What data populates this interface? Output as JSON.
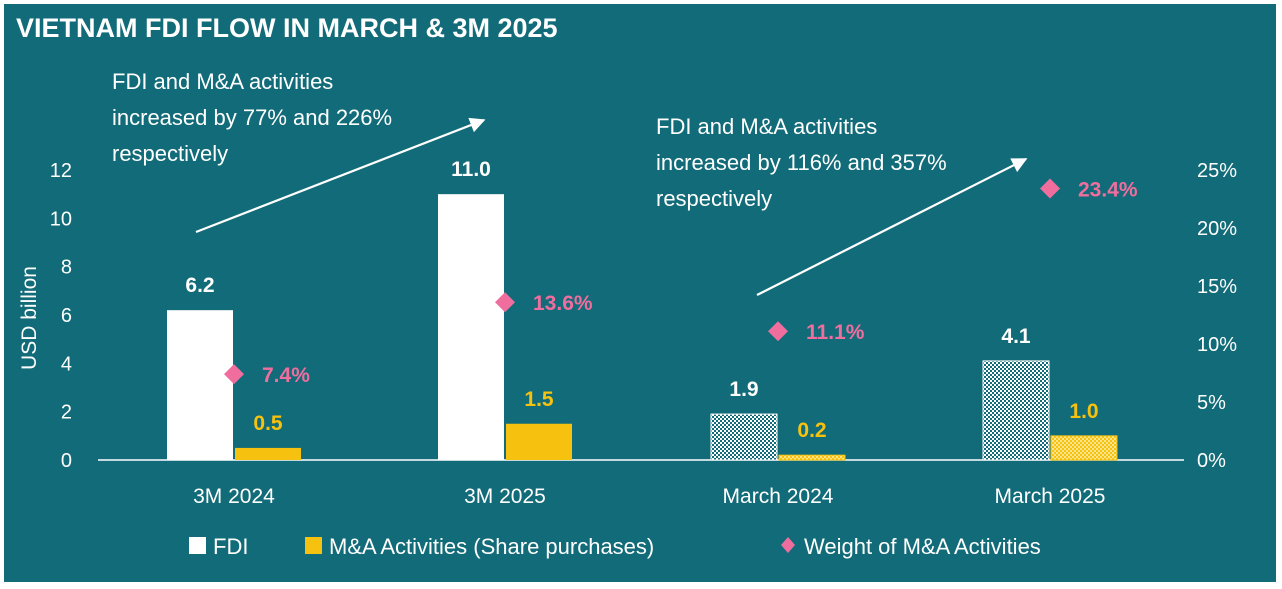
{
  "chart_data": {
    "type": "bar",
    "title": "VIETNAM FDI FLOW IN MARCH & 3M 2025",
    "categories": [
      "3M 2024",
      "3M 2025",
      "March 2024",
      "March 2025"
    ],
    "ylabel": "USD billion",
    "ylim": [
      0,
      12
    ],
    "y_ticks": [
      "0",
      "2",
      "4",
      "6",
      "8",
      "10",
      "12"
    ],
    "y2lim": [
      0,
      25
    ],
    "y2_ticks": [
      "0%",
      "5%",
      "10%",
      "15%",
      "20%",
      "25%"
    ],
    "series": [
      {
        "name": "FDI",
        "type": "bar",
        "color": "#ffffff",
        "values": [
          6.2,
          11.0,
          1.9,
          4.1
        ],
        "labels": [
          "6.2",
          "11.0",
          "1.9",
          "4.1"
        ]
      },
      {
        "name": "M&A Activities (Share purchases)",
        "type": "bar",
        "color": "#f6c20f",
        "values": [
          0.5,
          1.5,
          0.2,
          1.0
        ],
        "labels": [
          "0.5",
          "1.5",
          "0.2",
          "1.0"
        ]
      },
      {
        "name": "Weight of M&A Activities",
        "type": "scatter",
        "marker": "diamond",
        "color": "#ef6e9e",
        "axis": "secondary",
        "values": [
          7.4,
          13.6,
          11.1,
          23.4
        ],
        "labels": [
          "7.4%",
          "13.6%",
          "11.1%",
          "23.4%"
        ]
      }
    ],
    "pattern_fill_categories": [
      "March 2024",
      "March 2025"
    ],
    "legend_position": "bottom",
    "grid": false,
    "annotations": [
      {
        "lines": [
          "FDI and M&A activities",
          "increased by 77% and 226%",
          "respectively"
        ]
      },
      {
        "lines": [
          "FDI and M&A activities",
          "increased by 116% and 357%",
          "respectively"
        ]
      }
    ]
  }
}
